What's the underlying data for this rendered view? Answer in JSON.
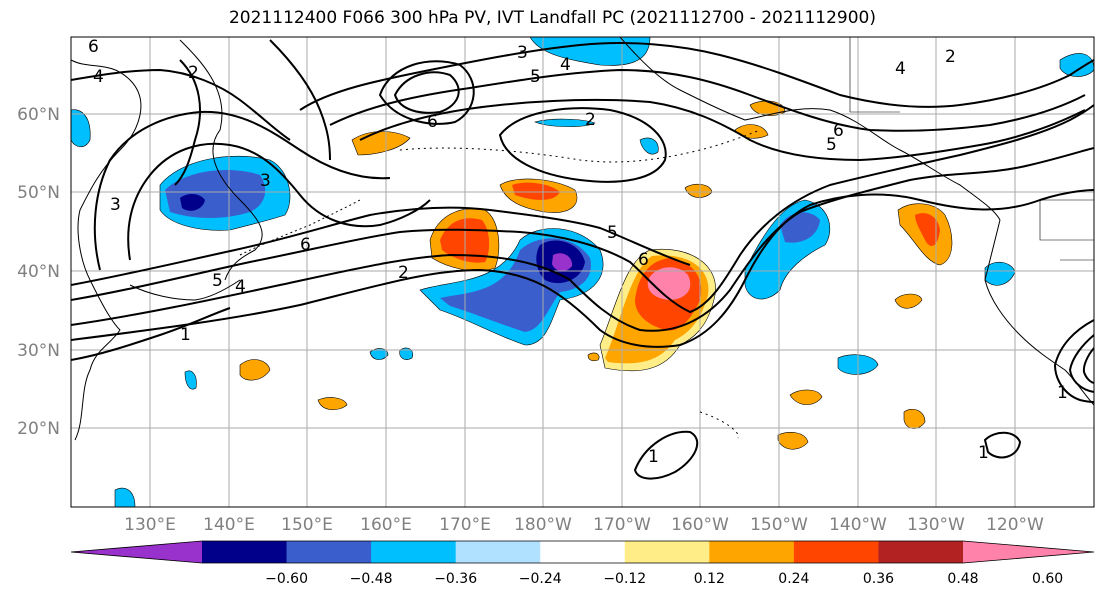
{
  "map": {
    "title": "2021112400 F066 300 hPa PV, IVT Landfall PC (2021112700 - 2021112900)",
    "lat_labels": [
      "60°N",
      "50°N",
      "40°N",
      "30°N",
      "20°N"
    ],
    "lon_labels": [
      "130°E",
      "140°E",
      "150°E",
      "160°E",
      "170°E",
      "180°W",
      "170°W",
      "160°W",
      "150°W",
      "140°W",
      "130°W",
      "120°W"
    ],
    "colorbar": {
      "tick_labels": [
        "−0.60",
        "−0.48",
        "−0.36",
        "−0.24",
        "−0.12",
        "0.12",
        "0.24",
        "0.36",
        "0.48",
        "0.60"
      ],
      "colors": [
        "#9932cc",
        "#00008b",
        "#3a5fcd",
        "#00bfff",
        "#b0e2ff",
        "#ffffff",
        "#ffee88",
        "#ffa500",
        "#ff4500",
        "#b22222",
        "#ff82ab"
      ],
      "extend": "both"
    },
    "contour_labels": [
      "6",
      "4",
      "2",
      "3",
      "1",
      "5"
    ],
    "contour_color": "#000000",
    "grid": true
  }
}
